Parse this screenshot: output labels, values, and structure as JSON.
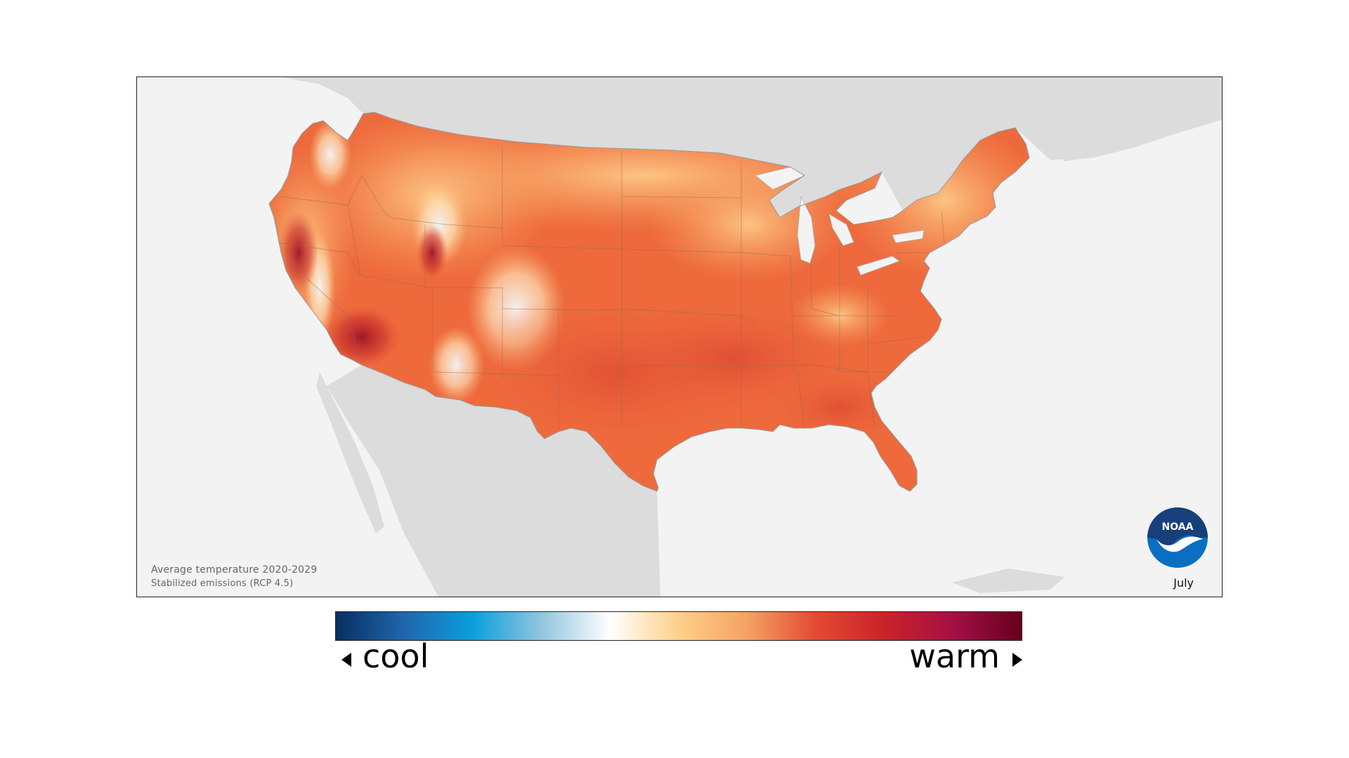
{
  "map": {
    "subject": "Average temperature",
    "caption_line1": "Average temperature 2020-2029",
    "caption_line2": "Stabilized emissions (RCP 4.5)",
    "month": "July",
    "logo_text": "NOAA",
    "region": "contiguous-united-states"
  },
  "legend": {
    "low_label": "cool",
    "high_label": "warm",
    "gradient_colors": [
      "#053061",
      "#2166ac",
      "#0b9fdc",
      "#92c5de",
      "#ffffff",
      "#fdd08a",
      "#f4a264",
      "#e34a33",
      "#c9232a",
      "#a50f45",
      "#67001f"
    ]
  },
  "colors": {
    "land_outside": "#dcdcdc",
    "water": "#f3f3f3",
    "warm_dominant": "#ee6a3c",
    "hot_southwest": "#a8182a",
    "cool_mountains": "#fbfcfd",
    "noaa_blue": "#0a5fb0",
    "noaa_navy": "#173f7a"
  }
}
